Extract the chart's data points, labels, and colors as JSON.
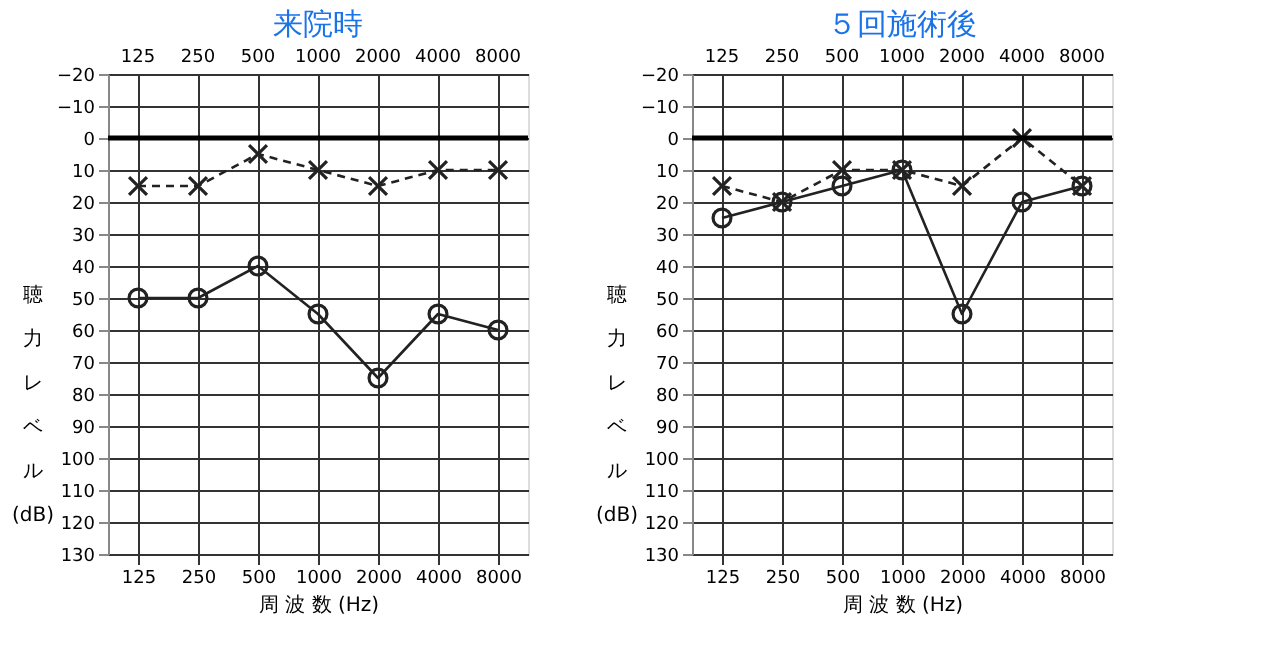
{
  "chart_data": [
    {
      "type": "line",
      "title": "来院時",
      "categories": [
        "125",
        "250",
        "500",
        "1000",
        "2000",
        "4000",
        "8000"
      ],
      "xlabel": "周 波 数 (Hz)",
      "ylabel": "聴力レベル (dB)",
      "ylim": [
        130,
        -20
      ],
      "yticks": [
        -20,
        -10,
        0,
        10,
        20,
        30,
        40,
        50,
        60,
        70,
        80,
        90,
        100,
        110,
        120,
        130
      ],
      "grid": true,
      "ref_lines": [
        {
          "axis": "y",
          "value": 0,
          "color": "#000000"
        }
      ],
      "series": [
        {
          "color": "#222222",
          "marker": "circle",
          "line_style": "solid",
          "values": [
            50,
            50,
            40,
            55,
            75,
            55,
            60
          ]
        },
        {
          "color": "#222222",
          "marker": "cross",
          "line_style": "dashed",
          "values": [
            15,
            15,
            5,
            10,
            15,
            10,
            10
          ]
        }
      ]
    },
    {
      "type": "line",
      "title": "５回施術後",
      "categories": [
        "125",
        "250",
        "500",
        "1000",
        "2000",
        "4000",
        "8000"
      ],
      "xlabel": "周 波 数 (Hz)",
      "ylabel": "聴力レベル (dB)",
      "ylim": [
        130,
        -20
      ],
      "yticks": [
        -20,
        -10,
        0,
        10,
        20,
        30,
        40,
        50,
        60,
        70,
        80,
        90,
        100,
        110,
        120,
        130
      ],
      "grid": true,
      "ref_lines": [
        {
          "axis": "y",
          "value": 0,
          "color": "#000000"
        }
      ],
      "series": [
        {
          "color": "#222222",
          "marker": "circle",
          "line_style": "solid",
          "values": [
            25,
            20,
            15,
            10,
            55,
            20,
            15
          ]
        },
        {
          "color": "#222222",
          "marker": "cross",
          "line_style": "dashed",
          "values": [
            15,
            20,
            10,
            10,
            15,
            0,
            15
          ]
        }
      ]
    }
  ]
}
